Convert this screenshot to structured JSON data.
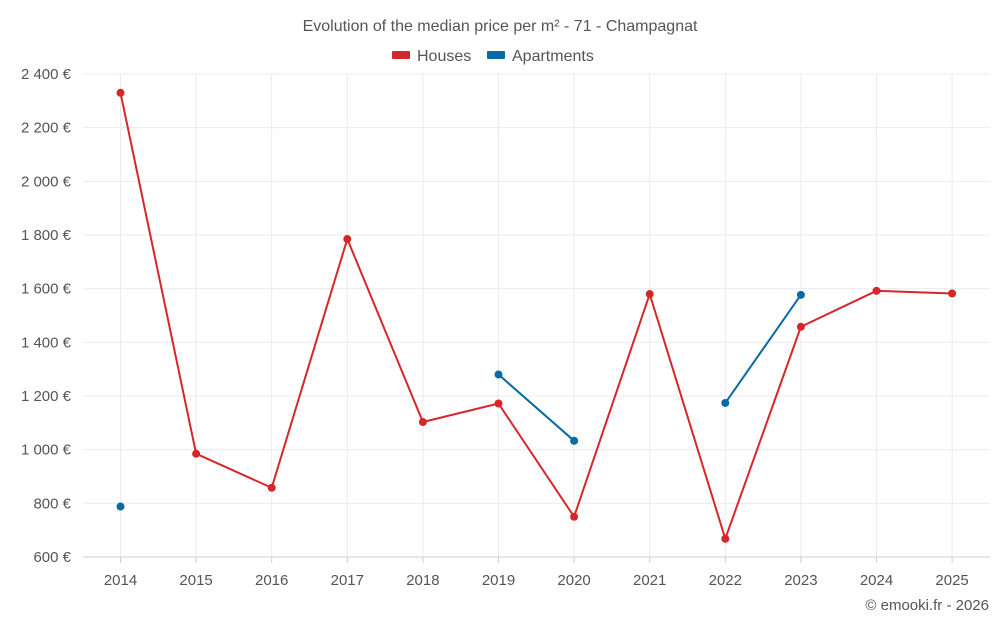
{
  "chart_data": {
    "type": "line",
    "title": "Evolution of the median price per m² - 71 - Champagnat",
    "x": [
      2014,
      2015,
      2016,
      2017,
      2018,
      2019,
      2020,
      2021,
      2022,
      2023,
      2024,
      2025
    ],
    "x_tick_labels": [
      "2014",
      "2015",
      "2016",
      "2017",
      "2018",
      "2019",
      "2020",
      "2021",
      "2022",
      "2023",
      "2024",
      "2025"
    ],
    "ylim": [
      600,
      2400
    ],
    "y_ticks": [
      600,
      800,
      1000,
      1200,
      1400,
      1600,
      1800,
      2000,
      2200,
      2400
    ],
    "y_tick_labels": [
      "600 €",
      "800 €",
      "1 000 €",
      "1 200 €",
      "1 400 €",
      "1 600 €",
      "1 800 €",
      "2 000 €",
      "2 200 €",
      "2 400 €"
    ],
    "grid": true,
    "legend_position": "top-center",
    "series": [
      {
        "name": "Houses",
        "color": "#d62728",
        "values": [
          2330,
          985,
          858,
          1785,
          1103,
          1172,
          750,
          1580,
          668,
          1458,
          1592,
          1582
        ]
      },
      {
        "name": "Apartments",
        "color": "#0a6aa1",
        "values": [
          788,
          null,
          null,
          null,
          null,
          1280,
          1033,
          null,
          1174,
          1577,
          null,
          null
        ]
      }
    ]
  },
  "credit": "© emooki.fr - 2026"
}
